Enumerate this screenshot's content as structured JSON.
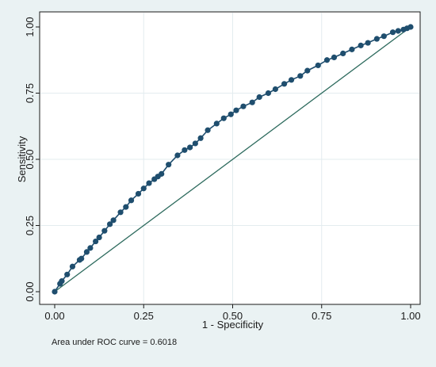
{
  "chart_data": {
    "type": "line",
    "xlabel": "1 - Specificity",
    "ylabel": "Sensitivity",
    "xlim": [
      0,
      1
    ],
    "ylim": [
      0,
      1
    ],
    "x_ticks": [
      "0.00",
      "0.25",
      "0.50",
      "0.75",
      "1.00"
    ],
    "y_ticks": [
      "0.00",
      "0.25",
      "0.50",
      "0.75",
      "1.00"
    ],
    "grid": true,
    "annotation": "Area under ROC curve = 0.6018",
    "colors": {
      "roc_curve": "#1f4e6e",
      "reference_line": "#2e6b5e",
      "grid": "#e3ecef",
      "background": "#eaf2f3"
    },
    "series": [
      {
        "x": [
          0,
          0.015,
          0.02,
          0.035,
          0.05,
          0.07,
          0.075,
          0.09,
          0.1,
          0.115,
          0.125,
          0.14,
          0.155,
          0.165,
          0.185,
          0.2,
          0.215,
          0.235,
          0.25,
          0.265,
          0.28,
          0.29,
          0.3,
          0.32,
          0.345,
          0.365,
          0.38,
          0.395,
          0.41,
          0.43,
          0.455,
          0.475,
          0.495,
          0.51,
          0.53,
          0.555,
          0.575,
          0.6,
          0.62,
          0.645,
          0.665,
          0.69,
          0.71,
          0.74,
          0.765,
          0.785,
          0.81,
          0.835,
          0.86,
          0.88,
          0.905,
          0.925,
          0.95,
          0.965,
          0.98,
          0.99,
          1
        ],
        "y": [
          0,
          0.03,
          0.04,
          0.065,
          0.095,
          0.12,
          0.125,
          0.15,
          0.165,
          0.19,
          0.205,
          0.23,
          0.255,
          0.27,
          0.3,
          0.32,
          0.345,
          0.37,
          0.39,
          0.41,
          0.425,
          0.435,
          0.445,
          0.48,
          0.515,
          0.535,
          0.545,
          0.56,
          0.58,
          0.61,
          0.635,
          0.655,
          0.67,
          0.685,
          0.7,
          0.715,
          0.735,
          0.75,
          0.765,
          0.785,
          0.8,
          0.815,
          0.835,
          0.855,
          0.875,
          0.885,
          0.9,
          0.915,
          0.93,
          0.94,
          0.955,
          0.965,
          0.98,
          0.985,
          0.99,
          0.995,
          1
        ]
      },
      {
        "x": [
          0,
          1
        ],
        "y": [
          0,
          1
        ]
      }
    ]
  }
}
